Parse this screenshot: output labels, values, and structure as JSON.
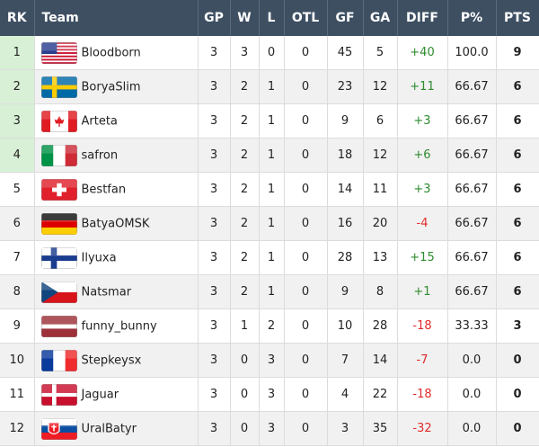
{
  "table": {
    "columns": [
      "RK",
      "Team",
      "GP",
      "W",
      "L",
      "OTL",
      "GF",
      "GA",
      "DIFF",
      "P%",
      "PTS"
    ],
    "rows": [
      [
        "1",
        "Bloodborn",
        "3",
        "3",
        "0",
        "0",
        "45",
        "5",
        "+40",
        "100.0",
        "9"
      ],
      [
        "2",
        "BoryaSlim",
        "3",
        "2",
        "1",
        "0",
        "23",
        "12",
        "+11",
        "66.67",
        "6"
      ],
      [
        "3",
        "Arteta",
        "3",
        "2",
        "1",
        "0",
        "9",
        "6",
        "+3",
        "66.67",
        "6"
      ],
      [
        "4",
        "safron",
        "3",
        "2",
        "1",
        "0",
        "18",
        "12",
        "+6",
        "66.67",
        "6"
      ],
      [
        "5",
        "Bestfan",
        "3",
        "2",
        "1",
        "0",
        "14",
        "11",
        "+3",
        "66.67",
        "6"
      ],
      [
        "6",
        "BatyaOMSK",
        "3",
        "2",
        "1",
        "0",
        "16",
        "20",
        "-4",
        "66.67",
        "6"
      ],
      [
        "7",
        "Ilyuxa",
        "3",
        "2",
        "1",
        "0",
        "28",
        "13",
        "+15",
        "66.67",
        "6"
      ],
      [
        "8",
        "Natsmar",
        "3",
        "2",
        "1",
        "0",
        "9",
        "8",
        "+1",
        "66.67",
        "6"
      ],
      [
        "9",
        "funny_bunny",
        "3",
        "1",
        "2",
        "0",
        "10",
        "28",
        "-18",
        "33.33",
        "3"
      ],
      [
        "10",
        "Stepkeysx",
        "3",
        "0",
        "3",
        "0",
        "7",
        "14",
        "-7",
        "0.0",
        "0"
      ],
      [
        "11",
        "Jaguar",
        "3",
        "0",
        "3",
        "0",
        "4",
        "22",
        "-18",
        "0.0",
        "0"
      ],
      [
        "12",
        "UralBatyr",
        "3",
        "0",
        "3",
        "0",
        "3",
        "35",
        "-32",
        "0.0",
        "0"
      ]
    ]
  }
}
